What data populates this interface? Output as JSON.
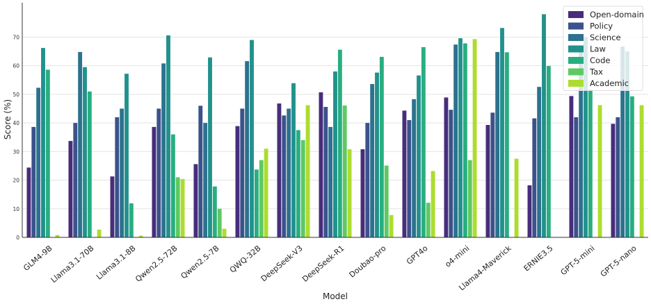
{
  "chart_data": {
    "type": "bar",
    "xlabel": "Model",
    "ylabel": "Score (%)",
    "ylim": [
      0,
      82
    ],
    "yticks": [
      0,
      10,
      20,
      30,
      40,
      50,
      60,
      70
    ],
    "grid": true,
    "legend_position": "top-right",
    "categories": [
      "GLM4-9B",
      "Llama3.1-70B",
      "Llama3.1-8B",
      "Qwen2.5-72B",
      "Qwen2.5-7B",
      "QWQ-32B",
      "DeepSeek-V3",
      "DeepSeek-R1",
      "Doubao-pro",
      "GPT4o",
      "o4-mini",
      "Llama4-Maverick",
      "ERNIE3.5",
      "GPT-5-mini",
      "GPT-5-nano"
    ],
    "series": [
      {
        "name": "Open-domain",
        "color": "#472d7b",
        "values": [
          24.4,
          33.7,
          21.3,
          38.6,
          25.6,
          38.9,
          46.8,
          50.7,
          30.8,
          44.3,
          48.9,
          39.3,
          18.2,
          49.4,
          39.7
        ]
      },
      {
        "name": "Policy",
        "color": "#3b528b",
        "values": [
          38.6,
          40.0,
          42.0,
          45.0,
          46.0,
          45.0,
          42.6,
          45.6,
          40.0,
          41.0,
          44.6,
          43.6,
          41.6,
          42.0,
          42.0
        ]
      },
      {
        "name": "Science",
        "color": "#2c728e",
        "values": [
          52.3,
          64.8,
          45.0,
          60.8,
          40.0,
          61.6,
          45.0,
          38.6,
          53.6,
          48.3,
          67.4,
          64.8,
          52.6,
          67.0,
          66.7
        ]
      },
      {
        "name": "Law",
        "color": "#21918c",
        "values": [
          66.2,
          59.5,
          57.2,
          70.6,
          62.9,
          69.0,
          53.9,
          58.0,
          57.6,
          56.6,
          69.6,
          73.2,
          78.0,
          70.0,
          65.0
        ]
      },
      {
        "name": "Code",
        "color": "#28ae80",
        "values": [
          58.6,
          51.0,
          11.9,
          36.0,
          17.8,
          23.7,
          37.5,
          65.6,
          63.1,
          66.5,
          67.8,
          64.7,
          59.9,
          51.7,
          49.3
        ]
      },
      {
        "name": "Tax",
        "color": "#5ec962",
        "values": [
          0,
          0,
          0,
          21.0,
          10.0,
          27.0,
          34.0,
          46.1,
          25.1,
          12.1,
          27.0,
          0,
          0,
          0,
          0
        ]
      },
      {
        "name": "Academic",
        "color": "#addc30",
        "values": [
          0.8,
          2.7,
          0.6,
          20.4,
          3.0,
          31.0,
          46.2,
          30.8,
          7.8,
          23.2,
          69.3,
          27.5,
          0,
          46.2,
          46.2
        ]
      }
    ]
  }
}
